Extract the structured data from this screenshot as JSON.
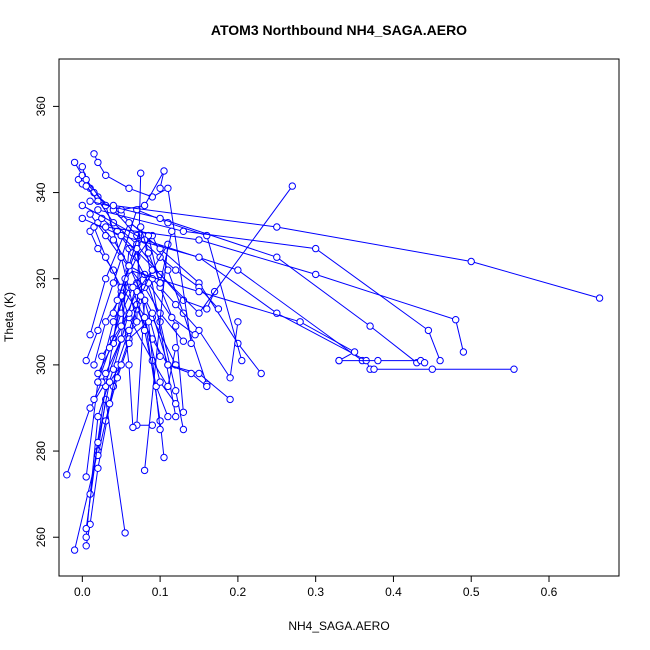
{
  "chart_data": {
    "type": "line",
    "title": "ATOM3 Northbound NH4_SAGA.AERO",
    "xlabel": "NH4_SAGA.AERO",
    "ylabel": "Theta (K)",
    "xlim": [
      -0.03,
      0.69
    ],
    "ylim": [
      251,
      371
    ],
    "xticks": [
      0.0,
      0.1,
      0.2,
      0.3,
      0.4,
      0.5,
      0.6
    ],
    "xtick_labels": [
      "0.0",
      "0.1",
      "0.2",
      "0.3",
      "0.4",
      "0.5",
      "0.6"
    ],
    "yticks": [
      260,
      280,
      300,
      320,
      340,
      360
    ],
    "ytick_labels": [
      "260",
      "280",
      "300",
      "320",
      "340",
      "360"
    ],
    "grid": false,
    "marker": "open-circle",
    "color": "#0000ff",
    "series": [
      {
        "x": [
          -0.01,
          0.02,
          0.03,
          0.055
        ],
        "y": [
          257,
          280,
          292,
          261
        ]
      },
      {
        "x": [
          0.005,
          0.01,
          0.02,
          0.04,
          0.06,
          0.09,
          0.12
        ],
        "y": [
          258,
          263,
          276,
          295,
          306,
          311,
          300
        ]
      },
      {
        "x": [
          0.005,
          0.02,
          0.04,
          0.07,
          0.09,
          0.11,
          0.15,
          0.19
        ],
        "y": [
          260,
          288,
          299,
          319,
          312,
          300,
          298,
          292
        ]
      },
      {
        "x": [
          -0.02,
          0.01,
          0.03,
          0.05,
          0.08,
          0.1,
          0.105
        ],
        "y": [
          274.5,
          290,
          296,
          306,
          311,
          287,
          278.5
        ]
      },
      {
        "x": [
          0.005,
          0.02,
          0.04,
          0.06,
          0.08,
          0.1,
          0.12,
          0.13
        ],
        "y": [
          274,
          296,
          310,
          318,
          321,
          310,
          294,
          285
        ]
      },
      {
        "x": [
          0.01,
          0.03,
          0.05,
          0.07,
          0.09,
          0.11,
          0.13,
          0.16
        ],
        "y": [
          270,
          295,
          317,
          325,
          330,
          322,
          312,
          295.5
        ]
      },
      {
        "x": [
          0.015,
          0.025,
          0.03,
          0.05,
          0.06,
          0.08,
          0.12
        ],
        "y": [
          292,
          296,
          298,
          306,
          327,
          329,
          288
        ]
      },
      {
        "x": [
          0.02,
          0.04,
          0.06,
          0.09,
          0.12,
          0.15,
          0.19,
          0.2
        ],
        "y": [
          296,
          306,
          323,
          320,
          314,
          308,
          297,
          310
        ]
      },
      {
        "x": [
          -0.01,
          0.01,
          0.04,
          0.07,
          0.1,
          0.13,
          0.16,
          0.17
        ],
        "y": [
          347,
          341,
          333,
          328,
          321,
          315,
          313,
          317
        ]
      },
      {
        "x": [
          -0.005,
          0.0,
          0.02,
          0.05,
          0.08,
          0.1,
          0.15,
          0.2,
          0.23
        ],
        "y": [
          343,
          342,
          339,
          335,
          330,
          327,
          319,
          305,
          298
        ]
      },
      {
        "x": [
          0.015,
          0.02,
          0.03,
          0.06,
          0.09,
          0.11,
          0.14
        ],
        "y": [
          349,
          347,
          344,
          341,
          339,
          341,
          305
        ]
      },
      {
        "x": [
          0.0,
          0.015,
          0.04,
          0.07,
          0.1,
          0.12,
          0.15,
          0.175
        ],
        "y": [
          344,
          340,
          336,
          330,
          325,
          322,
          318,
          313
        ]
      },
      {
        "x": [
          0.005,
          0.02,
          0.04,
          0.07,
          0.11,
          0.16,
          0.205
        ],
        "y": [
          301,
          308,
          319,
          336,
          333,
          330,
          301
        ]
      },
      {
        "x": [
          0.01,
          0.03,
          0.06,
          0.085,
          0.1,
          0.12,
          0.13
        ],
        "y": [
          307,
          320,
          333,
          330,
          318,
          309,
          289
        ]
      },
      {
        "x": [
          0.0,
          0.005,
          0.03,
          0.05,
          0.07,
          0.075
        ],
        "y": [
          346,
          343,
          337,
          325,
          310,
          344.5
        ]
      },
      {
        "x": [
          0.005,
          0.02,
          0.05,
          0.08,
          0.105,
          0.1
        ],
        "y": [
          341.5,
          338,
          336,
          337,
          345,
          341
        ]
      },
      {
        "x": [
          0.01,
          0.02,
          0.04,
          0.06,
          0.09,
          0.11,
          0.12
        ],
        "y": [
          331,
          327,
          322,
          311,
          301,
          295,
          304
        ]
      },
      {
        "x": [
          0.01,
          0.03,
          0.05,
          0.08,
          0.1,
          0.13
        ],
        "y": [
          335,
          330,
          325,
          318,
          312,
          305.5
        ]
      },
      {
        "x": [
          0.015,
          0.03,
          0.05,
          0.07,
          0.09,
          0.11,
          0.14,
          0.16
        ],
        "y": [
          332,
          325,
          318,
          313,
          306,
          300,
          298,
          295
        ]
      },
      {
        "x": [
          0.02,
          0.04,
          0.06,
          0.08,
          0.1
        ],
        "y": [
          333,
          329,
          323,
          315,
          302
        ]
      },
      {
        "x": [
          0.025,
          0.045,
          0.065,
          0.085,
          0.115,
          0.145
        ],
        "y": [
          334,
          331,
          326,
          319,
          311,
          307
        ]
      },
      {
        "x": [
          0.0,
          0.05,
          0.15,
          0.27
        ],
        "y": [
          334,
          330,
          312,
          341.5
        ]
      },
      {
        "x": [
          0.0,
          0.08,
          0.2,
          0.36
        ],
        "y": [
          337,
          329,
          322,
          301
        ]
      },
      {
        "x": [
          0.01,
          0.1,
          0.25,
          0.37,
          0.43
        ],
        "y": [
          338,
          334,
          325,
          309,
          300.5
        ]
      },
      {
        "x": [
          0.02,
          0.13,
          0.3,
          0.445,
          0.46
        ],
        "y": [
          336,
          331,
          327,
          308,
          301
        ]
      },
      {
        "x": [
          0.03,
          0.15,
          0.3,
          0.48,
          0.49
        ],
        "y": [
          332,
          329,
          321,
          310.5,
          303
        ]
      },
      {
        "x": [
          0.04,
          0.25,
          0.5,
          0.665
        ],
        "y": [
          337,
          332,
          324,
          315.5
        ]
      },
      {
        "x": [
          0.05,
          0.15,
          0.25,
          0.365,
          0.37
        ],
        "y": [
          330,
          325,
          312,
          301,
          299
        ]
      },
      {
        "x": [
          0.06,
          0.15,
          0.28,
          0.35,
          0.33
        ],
        "y": [
          322,
          317,
          310,
          303,
          301
        ]
      },
      {
        "x": [
          0.375,
          0.45,
          0.555
        ],
        "y": [
          299,
          299,
          299
        ]
      },
      {
        "x": [
          0.33,
          0.38,
          0.435,
          0.44
        ],
        "y": [
          301,
          301,
          301,
          300.5
        ]
      },
      {
        "x": [
          0.02,
          0.04,
          0.06,
          0.08,
          0.07,
          0.09
        ],
        "y": [
          298,
          305,
          312,
          315,
          286,
          286
        ]
      },
      {
        "x": [
          0.025,
          0.05,
          0.07,
          0.09,
          0.11,
          0.08
        ],
        "y": [
          302,
          309,
          317,
          322,
          328,
          275.5
        ]
      },
      {
        "x": [
          0.03,
          0.045,
          0.06,
          0.07,
          0.085,
          0.1
        ],
        "y": [
          287,
          297,
          305,
          314,
          310,
          285
        ]
      },
      {
        "x": [
          0.035,
          0.05,
          0.065,
          0.08,
          0.095,
          0.11
        ],
        "y": [
          304,
          312,
          318,
          308,
          295,
          288
        ]
      },
      {
        "x": [
          0.015,
          0.03,
          0.05,
          0.06,
          0.065
        ],
        "y": [
          300,
          310,
          316,
          300,
          285.5
        ]
      },
      {
        "x": [
          0.04,
          0.055,
          0.07,
          0.08,
          0.1,
          0.12
        ],
        "y": [
          312,
          320,
          327,
          311,
          296,
          291
        ]
      },
      {
        "x": [
          0.02,
          0.035,
          0.045,
          0.06,
          0.075,
          0.09
        ],
        "y": [
          279,
          291,
          300,
          308,
          316,
          322
        ]
      },
      {
        "x": [
          0.045,
          0.06,
          0.075,
          0.085,
          0.1,
          0.115
        ],
        "y": [
          315,
          323,
          332,
          326,
          319,
          331
        ]
      },
      {
        "x": [
          0.005,
          0.02,
          0.035,
          0.05
        ],
        "y": [
          262,
          282,
          296,
          300
        ]
      }
    ]
  }
}
